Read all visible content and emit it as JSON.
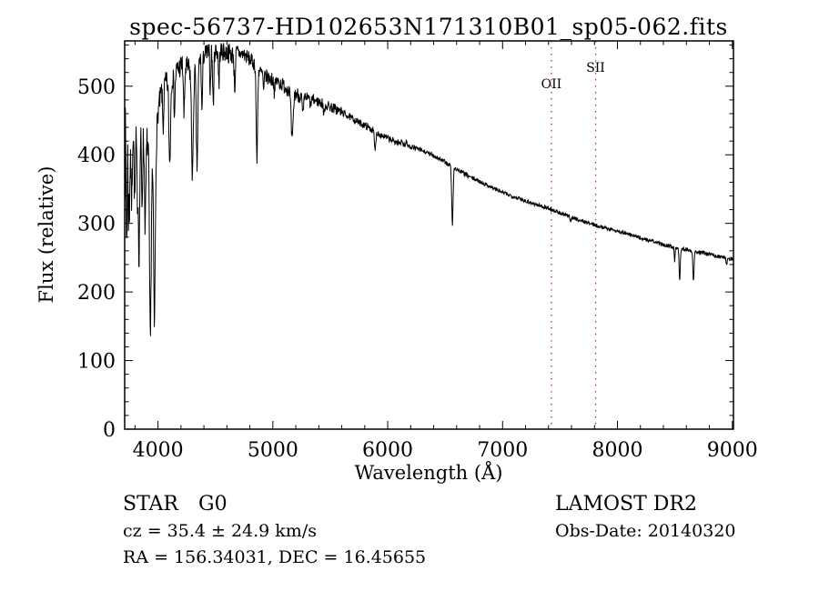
{
  "annotations": {
    "class_label": "STAR",
    "subclass_label": "G0",
    "survey_label": "LAMOST DR2",
    "cz_line": "cz = 35.4 ± 24.9 km/s",
    "obs_date_line": "Obs-Date: 20140320",
    "radec_line": "RA = 156.34031, DEC = 16.45655"
  },
  "chart_data": {
    "type": "line",
    "title": "spec-56737-HD102653N171310B01_sp05-062.fits",
    "xlabel": "Wavelength (Å)",
    "ylabel": "Flux (relative)",
    "xlim": [
      3710,
      9010
    ],
    "ylim": [
      0,
      566
    ],
    "x_major_ticks": [
      4000,
      5000,
      6000,
      7000,
      8000,
      9000
    ],
    "x_minor_step": 200,
    "y_major_ticks": [
      0,
      100,
      200,
      300,
      400,
      500
    ],
    "y_minor_step": 20,
    "grid": false,
    "legend": "none",
    "line_color": "#000000",
    "frame_color": "#000000",
    "marker_color": "#9b2a33",
    "marker_lines": [
      {
        "label": "OII",
        "wavelength": 7425,
        "label_baseline_y": 97
      },
      {
        "label": "SII",
        "wavelength": 7810,
        "label_baseline_y": 79
      }
    ],
    "spectrum": {
      "description": "Stellar spectrum trace: piecewise-linear continuum anchors [wavelength_A, flux_relative], Gaussian absorption lines [center_A, bottom_flux, sigma_A], uniform noise bands [from_A, to_A, amplitude_flux].",
      "sample_step": 3,
      "seed": 7,
      "flux_clip": [
        0,
        563
      ],
      "continuum": [
        [
          3700,
          390
        ],
        [
          3715,
          405
        ],
        [
          3730,
          402
        ],
        [
          3760,
          428
        ],
        [
          3790,
          446
        ],
        [
          3820,
          446
        ],
        [
          3850,
          436
        ],
        [
          3880,
          426
        ],
        [
          3910,
          420
        ],
        [
          3940,
          392
        ],
        [
          3970,
          382
        ],
        [
          4000,
          462
        ],
        [
          4030,
          492
        ],
        [
          4060,
          502
        ],
        [
          4100,
          507
        ],
        [
          4150,
          520
        ],
        [
          4200,
          530
        ],
        [
          4250,
          526
        ],
        [
          4300,
          522
        ],
        [
          4350,
          536
        ],
        [
          4400,
          546
        ],
        [
          4450,
          549
        ],
        [
          4500,
          552
        ],
        [
          4550,
          551
        ],
        [
          4600,
          549
        ],
        [
          4650,
          546
        ],
        [
          4700,
          548
        ],
        [
          4750,
          546
        ],
        [
          4800,
          539
        ],
        [
          4850,
          531
        ],
        [
          4900,
          519
        ],
        [
          4950,
          513
        ],
        [
          5000,
          509
        ],
        [
          5050,
          506
        ],
        [
          5100,
          500
        ],
        [
          5150,
          494
        ],
        [
          5200,
          489
        ],
        [
          5250,
          485
        ],
        [
          5300,
          483
        ],
        [
          5350,
          480
        ],
        [
          5400,
          477
        ],
        [
          5450,
          473
        ],
        [
          5500,
          470
        ],
        [
          5550,
          466
        ],
        [
          5600,
          462
        ],
        [
          5650,
          457
        ],
        [
          5700,
          452
        ],
        [
          5750,
          447
        ],
        [
          5800,
          443
        ],
        [
          5850,
          438
        ],
        [
          5900,
          433
        ],
        [
          5950,
          428
        ],
        [
          6000,
          424
        ],
        [
          6050,
          420
        ],
        [
          6100,
          417
        ],
        [
          6150,
          414
        ],
        [
          6200,
          412
        ],
        [
          6250,
          409
        ],
        [
          6300,
          406
        ],
        [
          6350,
          402
        ],
        [
          6400,
          399
        ],
        [
          6450,
          394
        ],
        [
          6500,
          389
        ],
        [
          6550,
          384
        ],
        [
          6600,
          379
        ],
        [
          6650,
          374
        ],
        [
          6700,
          369
        ],
        [
          6750,
          365
        ],
        [
          6800,
          361
        ],
        [
          6850,
          357
        ],
        [
          6900,
          353
        ],
        [
          6950,
          349
        ],
        [
          7000,
          345
        ],
        [
          7100,
          339
        ],
        [
          7200,
          333
        ],
        [
          7300,
          327
        ],
        [
          7400,
          322
        ],
        [
          7500,
          315
        ],
        [
          7600,
          309
        ],
        [
          7700,
          303
        ],
        [
          7800,
          298
        ],
        [
          7900,
          293
        ],
        [
          8000,
          289
        ],
        [
          8100,
          284
        ],
        [
          8200,
          279
        ],
        [
          8300,
          274
        ],
        [
          8400,
          269
        ],
        [
          8500,
          265
        ],
        [
          8600,
          262
        ],
        [
          8700,
          258
        ],
        [
          8800,
          255
        ],
        [
          8900,
          251
        ],
        [
          9000,
          248
        ],
        [
          9010,
          248
        ]
      ],
      "absorption_lines": [
        [
          3727,
          280,
          4
        ],
        [
          3748,
          310,
          6
        ],
        [
          3771,
          330,
          5
        ],
        [
          3798,
          336,
          6
        ],
        [
          3820,
          348,
          5
        ],
        [
          3835,
          256,
          6
        ],
        [
          3861,
          330,
          5
        ],
        [
          3889,
          300,
          6
        ],
        [
          3933,
          124,
          7
        ],
        [
          3969,
          150,
          7
        ],
        [
          4045,
          440,
          5
        ],
        [
          4102,
          388,
          7
        ],
        [
          4144,
          462,
          5
        ],
        [
          4227,
          455,
          5
        ],
        [
          4300,
          372,
          8
        ],
        [
          4340,
          382,
          7
        ],
        [
          4383,
          465,
          5
        ],
        [
          4455,
          495,
          4
        ],
        [
          4481,
          472,
          5
        ],
        [
          4531,
          500,
          4
        ],
        [
          4668,
          498,
          5
        ],
        [
          4861,
          390,
          6
        ],
        [
          4920,
          490,
          4
        ],
        [
          5015,
          487,
          4
        ],
        [
          5168,
          420,
          9
        ],
        [
          5262,
          458,
          6
        ],
        [
          5328,
          470,
          4
        ],
        [
          5445,
          455,
          4
        ],
        [
          5890,
          406,
          6
        ],
        [
          6122,
          424,
          4
        ],
        [
          6162,
          420,
          4
        ],
        [
          6563,
          298,
          6
        ],
        [
          7594,
          304,
          5
        ],
        [
          8498,
          246,
          4
        ],
        [
          8542,
          219,
          5
        ],
        [
          8662,
          217,
          5
        ],
        [
          8950,
          240,
          4
        ]
      ],
      "noise_regions": [
        [
          3700,
          3745,
          70
        ],
        [
          3745,
          3765,
          55
        ],
        [
          3765,
          3985,
          26
        ],
        [
          3985,
          4300,
          18
        ],
        [
          4300,
          4700,
          15
        ],
        [
          4700,
          5250,
          11
        ],
        [
          5250,
          5600,
          8
        ],
        [
          5600,
          6100,
          5
        ],
        [
          6100,
          6700,
          3.5
        ],
        [
          6700,
          7500,
          3
        ],
        [
          7500,
          9010,
          2.8
        ]
      ]
    }
  }
}
